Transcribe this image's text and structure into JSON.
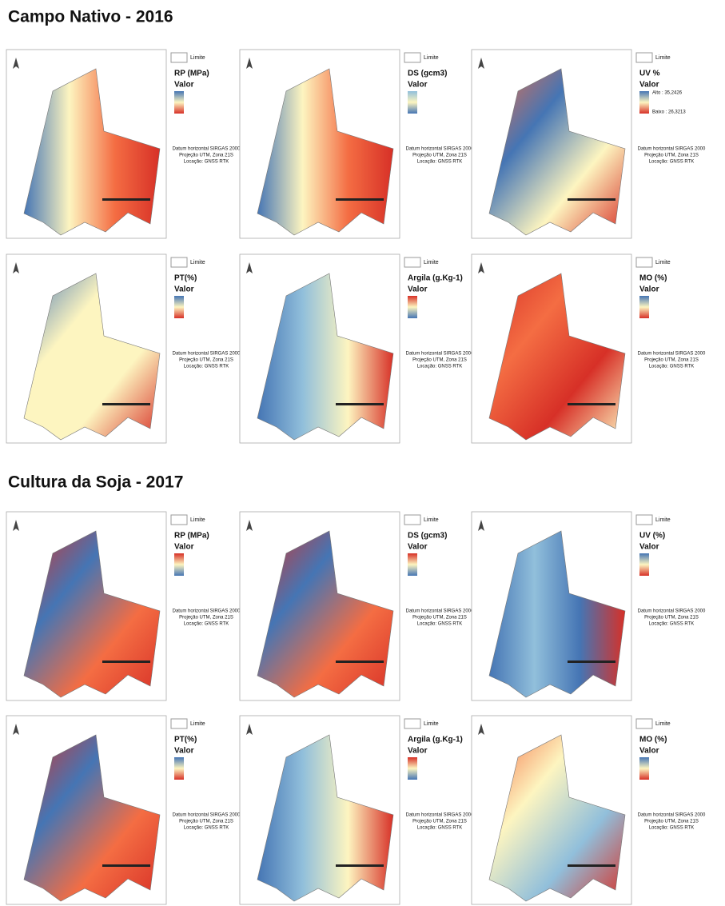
{
  "sections": [
    {
      "title": "Campo Nativo - 2016",
      "panels": [
        {
          "limit_label": "Limite",
          "variable": "RP (MPa)",
          "legend_title": "Valor",
          "datum": [
            "Datum horizontal SIRGAS 2000",
            "Projeção UTM, Zona 21S",
            "Locação: GNSS RTK"
          ]
        },
        {
          "limit_label": "Limite",
          "variable": "DS (gcm3)",
          "legend_title": "Valor",
          "datum": [
            "Datum horizontal SIRGAS 2000",
            "Projeção UTM, Zona 21S",
            "Locação: GNSS RTK"
          ]
        },
        {
          "limit_label": "Limite",
          "variable": "UV %",
          "legend_title": "Valor",
          "high": "Alto : 35,2426",
          "low": "Baixo : 26,3213",
          "datum": [
            "Datum horizontal SIRGAS 2000",
            "Projeção UTM, Zona 21S",
            "Locação: GNSS RTK"
          ]
        },
        {
          "limit_label": "Limite",
          "variable": "PT(%)",
          "legend_title": "Valor",
          "datum": [
            "Datum horizontal SIRGAS 2000",
            "Projeção UTM, Zona 21S",
            "Locação: GNSS RTK"
          ]
        },
        {
          "limit_label": "Limite",
          "variable": "Argila (g.Kg-1)",
          "legend_title": "Valor",
          "datum": [
            "Datum horizontal SIRGAS 2000",
            "Projeção UTM, Zona 21S",
            "Locação: GNSS RTK"
          ]
        },
        {
          "limit_label": "Limite",
          "variable": "MO (%)",
          "legend_title": "Valor",
          "datum": [
            "Datum horizontal SIRGAS 2000",
            "Projeção UTM, Zona 21S",
            "Locação: GNSS RTK"
          ]
        }
      ]
    },
    {
      "title": "Cultura da Soja - 2017",
      "panels": [
        {
          "limit_label": "Limite",
          "variable": "RP (MPa)",
          "legend_title": "Valor",
          "datum": [
            "Datum horizontal SIRGAS 2000",
            "Projeção UTM, Zona 21S",
            "Locação: GNSS RTK"
          ]
        },
        {
          "limit_label": "Limite",
          "variable": "DS (gcm3)",
          "legend_title": "Valor",
          "datum": [
            "Datum horizontal SIRGAS 2000",
            "Projeção UTM, Zona 21S",
            "Locação: GNSS RTK"
          ]
        },
        {
          "limit_label": "Limite",
          "variable": "UV (%)",
          "legend_title": "Valor",
          "datum": [
            "Datum horizontal SIRGAS 2000",
            "Projeção UTM, Zona 21S",
            "Locação: GNSS RTK"
          ]
        },
        {
          "limit_label": "Limite",
          "variable": "PT(%)",
          "legend_title": "Valor",
          "datum": [
            "Datum horizontal SIRGAS 2000",
            "Projeção UTM, Zona 21S",
            "Locação: GNSS RTK"
          ]
        },
        {
          "limit_label": "Limite",
          "variable": "Argila (g.Kg-1)",
          "legend_title": "Valor",
          "datum": [
            "Datum horizontal SIRGAS 2000",
            "Projeção UTM, Zona 21S",
            "Locação: GNSS RTK"
          ]
        },
        {
          "limit_label": "Limite",
          "variable": "MO (%)",
          "legend_title": "Valor",
          "datum": [
            "Datum horizontal SIRGAS 2000",
            "Projeção UTM, Zona 21S",
            "Locação: GNSS RTK"
          ]
        }
      ]
    }
  ]
}
